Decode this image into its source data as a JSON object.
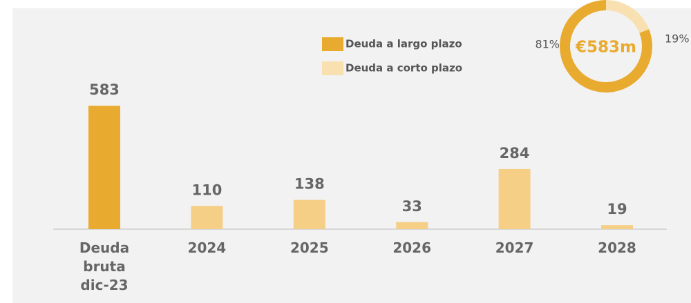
{
  "chart_data": {
    "type": "bar",
    "categories": [
      "Deuda bruta dic-23",
      "2024",
      "2025",
      "2026",
      "2027",
      "2028"
    ],
    "values": [
      583,
      110,
      138,
      33,
      284,
      19
    ],
    "colors": [
      "#e9ab2f",
      "#f6cf87",
      "#f6cf87",
      "#f6cf87",
      "#f6cf87",
      "#f6cf87"
    ],
    "ylim": [
      0,
      600
    ],
    "legend": [
      {
        "name": "Deuda a largo plazo",
        "color": "#e9ab2f"
      },
      {
        "name": "Deuda a corto plazo",
        "color": "#f9e0b0"
      }
    ],
    "donut": {
      "center_label": "€583m",
      "values": [
        19,
        81
      ],
      "value_labels": [
        "19%",
        "81%"
      ],
      "colors": [
        "#f9e0b0",
        "#e9ab2f"
      ]
    }
  }
}
